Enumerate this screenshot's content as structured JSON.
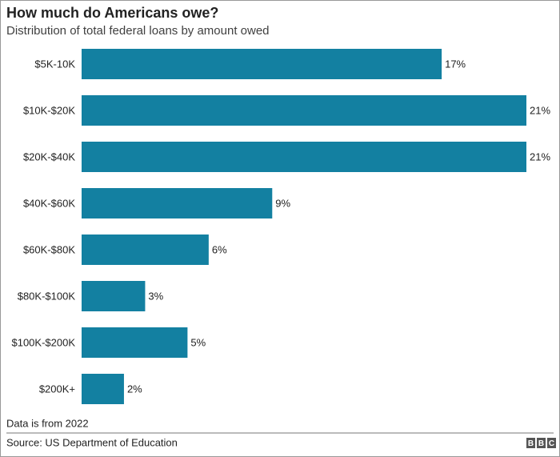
{
  "chart_data": {
    "type": "bar",
    "orientation": "horizontal",
    "title": "How much do Americans owe?",
    "subtitle": "Distribution of total federal loans by amount owed",
    "categories": [
      "$5K-10K",
      "$10K-$20K",
      "$20K-$40K",
      "$40K-$60K",
      "$60K-$80K",
      "$80K-$100K",
      "$100K-$200K",
      "$200K+"
    ],
    "values": [
      17,
      21,
      21,
      9,
      6,
      3,
      5,
      2
    ],
    "value_labels": [
      "17%",
      "21%",
      "21%",
      "9%",
      "6%",
      "3%",
      "5%",
      "2%"
    ],
    "color": "#1380a1",
    "note": "Data is from 2022",
    "source": "Source: US Department of Education",
    "logo": [
      "B",
      "B",
      "C"
    ]
  }
}
